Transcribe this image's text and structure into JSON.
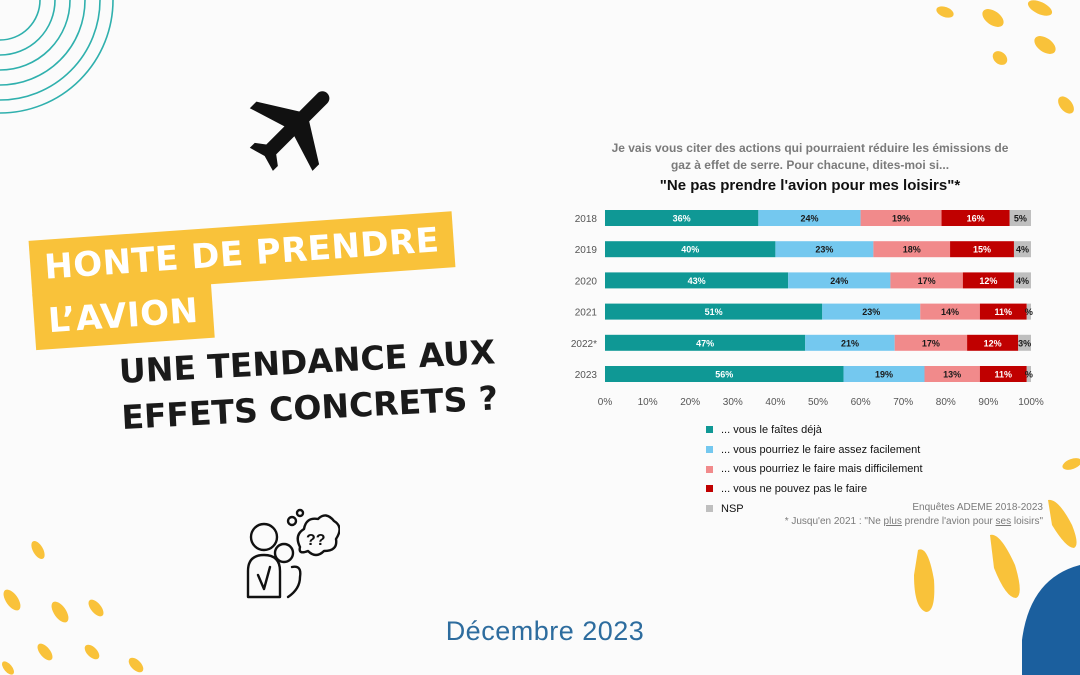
{
  "headline": {
    "line1": "HONTE DE PRENDRE",
    "line2": "L’AVION",
    "subtitle": "UNE TENDANCE AUX EFFETS CONCRETS ?"
  },
  "date": "Décembre 2023",
  "icons": {
    "airplane": "airplane-icon",
    "thinking_person": "thinking-person-icon"
  },
  "colors": {
    "yellow": "#f9c23a",
    "teal": "#1c9a97",
    "navy": "#1b5f9e",
    "deja": "#0f9895",
    "facile": "#74c8ef",
    "difficile": "#f18a8b",
    "peut_pas": "#c00000",
    "nsp": "#bfbfbf"
  },
  "chart_data": {
    "type": "bar",
    "orientation": "horizontal",
    "stacked": true,
    "question": "Je vais vous citer des actions qui pourraient réduire les émissions de gaz à effet de serre. Pour chacune, dites-moi si...",
    "title": "\"Ne pas prendre l'avion pour mes loisirs\"*",
    "categories": [
      "2018",
      "2019",
      "2020",
      "2021",
      "2022*",
      "2023"
    ],
    "series": [
      {
        "name": "... vous le faîtes déjà",
        "values": [
          36,
          40,
          43,
          51,
          47,
          56
        ],
        "labels": [
          "36%",
          "40%",
          "43%",
          "51%",
          "47%",
          "56%"
        ]
      },
      {
        "name": "... vous pourriez le faire assez facilement",
        "values": [
          24,
          23,
          24,
          23,
          21,
          19
        ],
        "labels": [
          "24%",
          "23%",
          "24%",
          "23%",
          "21%",
          "19%"
        ]
      },
      {
        "name": "... vous pourriez le faire mais difficilement",
        "values": [
          19,
          18,
          17,
          14,
          17,
          13
        ],
        "labels": [
          "19%",
          "18%",
          "17%",
          "14%",
          "17%",
          "13%"
        ]
      },
      {
        "name": "... vous ne pouvez pas le faire",
        "values": [
          16,
          15,
          12,
          11,
          12,
          11
        ],
        "labels": [
          "16%",
          "15%",
          "12%",
          "11%",
          "12%",
          "11%"
        ]
      },
      {
        "name": "NSP",
        "values": [
          5,
          4,
          4,
          1,
          3,
          1
        ],
        "labels": [
          "5%",
          "4%",
          "4%",
          "%",
          "3%",
          "%"
        ]
      }
    ],
    "x_ticks": [
      "0%",
      "10%",
      "20%",
      "30%",
      "40%",
      "50%",
      "60%",
      "70%",
      "80%",
      "90%",
      "100%"
    ],
    "xlim": [
      0,
      100
    ],
    "legend_position": "bottom",
    "source": "Enquêtes ADEME 2018-2023",
    "footnote": {
      "pre": "* Jusqu'en 2021 : \"Ne ",
      "u1": "plus",
      "mid": " prendre l'avion pour ",
      "u2": "ses",
      "post": " loisirs\""
    }
  }
}
